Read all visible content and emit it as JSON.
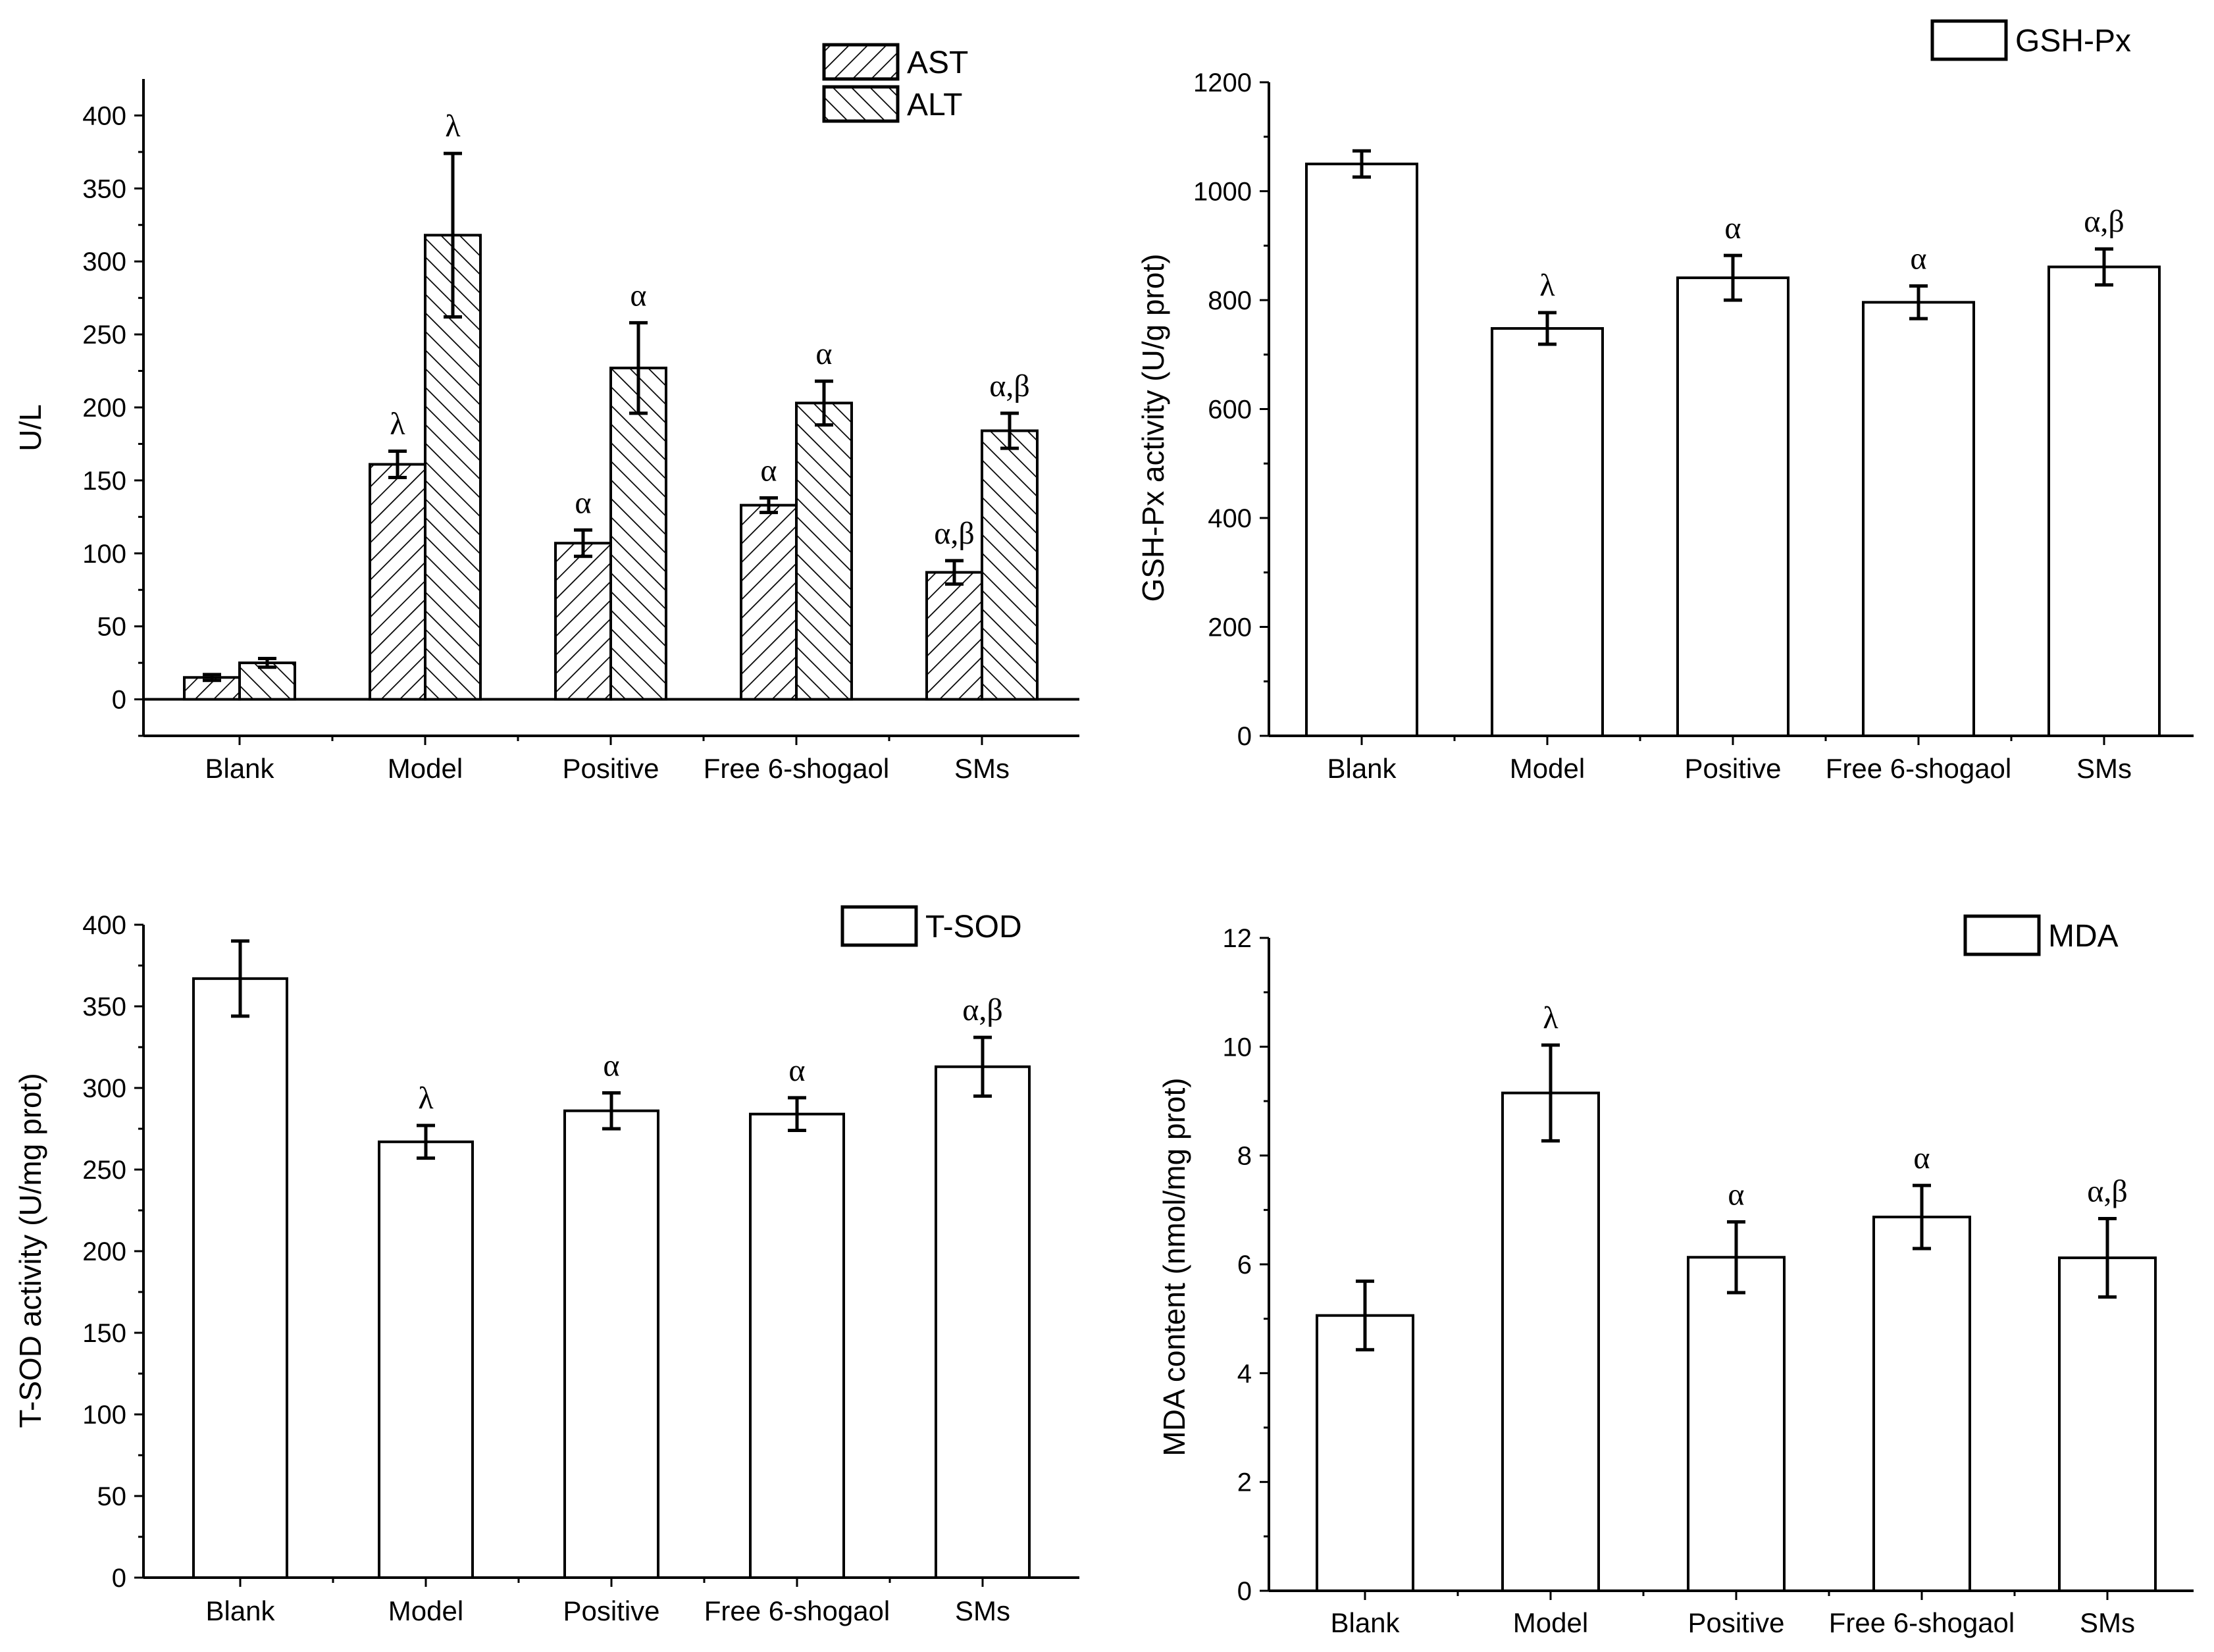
{
  "chart_data": [
    {
      "type": "bar",
      "ylabel": "U/L",
      "ylim": [
        -25,
        425
      ],
      "yticks": [
        0,
        50,
        100,
        150,
        200,
        250,
        300,
        350,
        400
      ],
      "categories": [
        "Blank",
        "Model",
        "Positive",
        "Free 6-shogaol",
        "SMs"
      ],
      "series": [
        {
          "name": "AST",
          "pattern": "hatch-right",
          "values": [
            15,
            161,
            107,
            133,
            87
          ],
          "errors": [
            2,
            9,
            9,
            5,
            8
          ],
          "annotations": [
            "",
            "λ",
            "α",
            "α",
            "α,β"
          ]
        },
        {
          "name": "ALT",
          "pattern": "hatch-left",
          "values": [
            25,
            318,
            227,
            203,
            184
          ],
          "errors": [
            3,
            56,
            31,
            15,
            12
          ],
          "annotations": [
            "",
            "λ",
            "α",
            "α",
            "α,β"
          ]
        }
      ],
      "legend_position": "top-right",
      "grid": false
    },
    {
      "type": "bar",
      "ylabel": "GSH-Px activity (U/g prot)",
      "ylim": [
        0,
        1200
      ],
      "yticks": [
        0,
        200,
        400,
        600,
        800,
        1000,
        1200
      ],
      "categories": [
        "Blank",
        "Model",
        "Positive",
        "Free 6-shogaol",
        "SMs"
      ],
      "series": [
        {
          "name": "GSH-Px",
          "pattern": "none",
          "values": [
            1050,
            748,
            841,
            796,
            861
          ],
          "errors": [
            24,
            29,
            41,
            30,
            33
          ],
          "annotations": [
            "",
            "λ",
            "α",
            "α",
            "α,β"
          ]
        }
      ],
      "legend_position": "top-right",
      "grid": false
    },
    {
      "type": "bar",
      "ylabel": "T-SOD activity (U/mg prot)",
      "ylim": [
        0,
        400
      ],
      "yticks": [
        0,
        50,
        100,
        150,
        200,
        250,
        300,
        350,
        400
      ],
      "categories": [
        "Blank",
        "Model",
        "Positive",
        "Free 6-shogaol",
        "SMs"
      ],
      "series": [
        {
          "name": "T-SOD",
          "pattern": "none",
          "values": [
            367,
            267,
            286,
            284,
            313
          ],
          "errors": [
            23,
            10,
            11,
            10,
            18
          ],
          "annotations": [
            "",
            "λ",
            "α",
            "α",
            "α,β"
          ]
        }
      ],
      "legend_position": "top-right",
      "grid": false
    },
    {
      "type": "bar",
      "ylabel": "MDA content (nmol/mg prot)",
      "ylim": [
        0,
        12
      ],
      "yticks": [
        0,
        2,
        4,
        6,
        8,
        10,
        12
      ],
      "categories": [
        "Blank",
        "Model",
        "Positive",
        "Free 6-shogaol",
        "SMs"
      ],
      "series": [
        {
          "name": "MDA",
          "pattern": "none",
          "values": [
            5.06,
            9.15,
            6.13,
            6.87,
            6.12
          ],
          "errors": [
            0.63,
            0.88,
            0.65,
            0.58,
            0.72
          ],
          "annotations": [
            "",
            "λ",
            "α",
            "α",
            "α,β"
          ]
        }
      ],
      "legend_position": "top-right",
      "grid": false
    }
  ]
}
